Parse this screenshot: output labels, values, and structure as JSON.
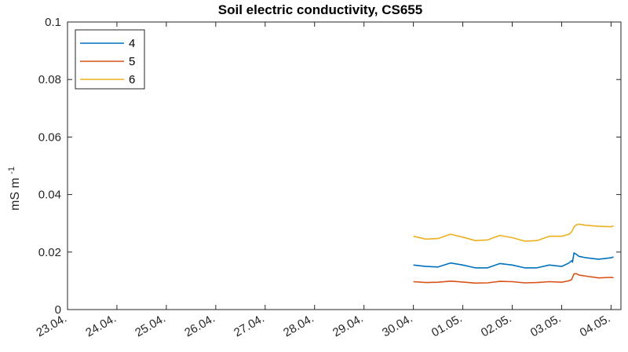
{
  "chart_data": {
    "type": "line",
    "title": "Soil electric conductivity, CS655",
    "xlabel": "",
    "ylabel": "mS m",
    "ylabel_exponent": "-1",
    "xlim": [
      0,
      11.2
    ],
    "ylim": [
      0,
      0.1
    ],
    "x_tick_labels": [
      "23.04.",
      "24.04.",
      "25.04.",
      "26.04.",
      "27.04.",
      "28.04.",
      "29.04.",
      "30.04.",
      "01.05.",
      "02.05.",
      "03.05.",
      "04.05."
    ],
    "y_ticks": [
      0,
      0.02,
      0.04,
      0.06,
      0.08,
      0.1
    ],
    "y_tick_labels": [
      "0",
      "0.02",
      "0.04",
      "0.06",
      "0.08",
      "0.1"
    ],
    "legend_position": "top-left",
    "grid": false,
    "x_unit_note": "x in days after 23.04.",
    "series": [
      {
        "name": "4",
        "color": "#0072BD",
        "x": [
          7.0,
          7.25,
          7.5,
          7.75,
          8.0,
          8.25,
          8.5,
          8.75,
          9.0,
          9.25,
          9.5,
          9.75,
          10.0,
          10.15,
          10.2,
          10.22,
          10.25,
          10.3,
          10.35,
          10.5,
          10.75,
          11.0,
          11.05
        ],
        "values": [
          0.0155,
          0.015,
          0.0148,
          0.0162,
          0.0155,
          0.0145,
          0.0145,
          0.016,
          0.0155,
          0.0145,
          0.0145,
          0.0155,
          0.015,
          0.0162,
          0.017,
          0.0165,
          0.0197,
          0.0192,
          0.0185,
          0.018,
          0.0175,
          0.018,
          0.0183
        ]
      },
      {
        "name": "5",
        "color": "#D95319",
        "x": [
          7.0,
          7.25,
          7.5,
          7.75,
          8.0,
          8.25,
          8.5,
          8.75,
          9.0,
          9.25,
          9.5,
          9.75,
          10.0,
          10.15,
          10.2,
          10.25,
          10.3,
          10.35,
          10.5,
          10.75,
          11.0,
          11.05
        ],
        "values": [
          0.0097,
          0.0094,
          0.0095,
          0.0099,
          0.0096,
          0.0092,
          0.0093,
          0.0098,
          0.0097,
          0.0093,
          0.0094,
          0.0097,
          0.0095,
          0.01,
          0.0104,
          0.0124,
          0.0125,
          0.012,
          0.0116,
          0.011,
          0.0112,
          0.0111
        ]
      },
      {
        "name": "6",
        "color": "#EDB120",
        "x": [
          7.0,
          7.25,
          7.5,
          7.75,
          8.0,
          8.25,
          8.5,
          8.75,
          9.0,
          9.25,
          9.5,
          9.75,
          10.0,
          10.15,
          10.2,
          10.25,
          10.3,
          10.35,
          10.5,
          10.75,
          11.0,
          11.05
        ],
        "values": [
          0.0255,
          0.0245,
          0.0247,
          0.0262,
          0.0252,
          0.024,
          0.0242,
          0.0258,
          0.025,
          0.0238,
          0.024,
          0.0255,
          0.0255,
          0.0262,
          0.027,
          0.0287,
          0.0295,
          0.0297,
          0.0293,
          0.029,
          0.0288,
          0.0291
        ]
      }
    ]
  }
}
